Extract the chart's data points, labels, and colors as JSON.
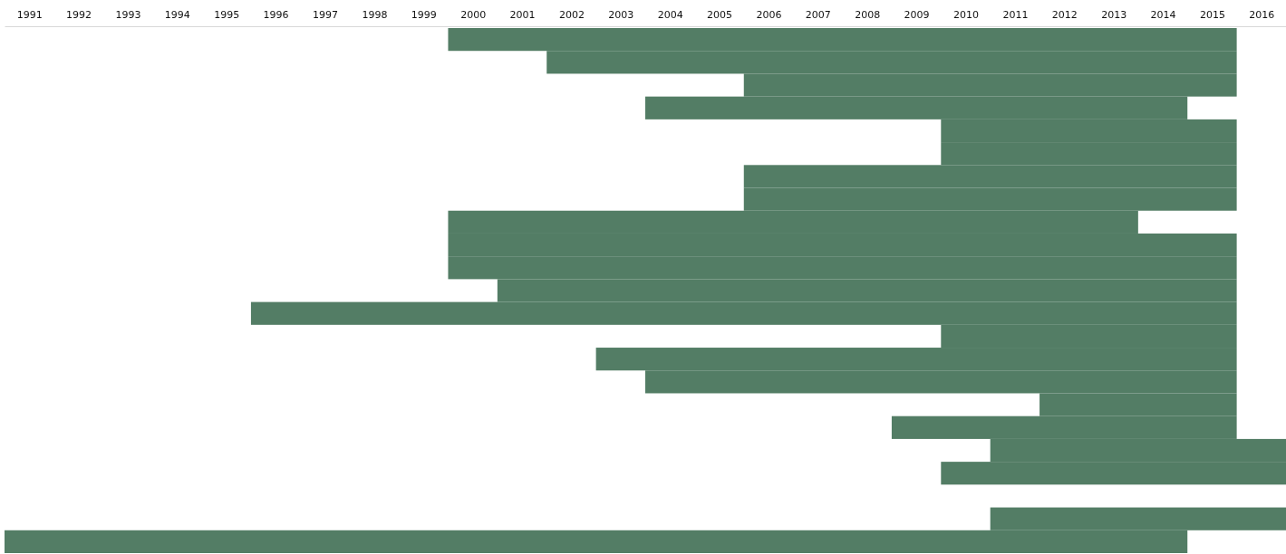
{
  "chart_data": [
    {
      "type": "bar",
      "orientation": "horizontal",
      "categories": [
        null,
        null,
        null,
        null,
        null,
        null,
        null,
        null,
        null,
        null,
        null,
        null,
        null,
        null,
        null,
        null,
        null,
        null,
        null,
        null
      ],
      "base": [
        1999.5,
        2001.5,
        2005.5,
        2003.5,
        2009.5,
        2009.5,
        2005.5,
        2005.5,
        1999.5,
        1999.5,
        1999.5,
        2000.5,
        1995.5,
        2009.5,
        2002.5,
        2003.5,
        2011.5,
        2008.5,
        2010.5,
        2009.5
      ],
      "values": [
        16,
        14,
        10,
        11,
        6,
        6,
        10,
        10,
        14,
        16,
        16,
        15,
        20,
        6,
        13,
        12,
        4,
        7,
        6,
        7
      ],
      "color": "#537d65",
      "xlim": [
        1990.5,
        2016.5
      ],
      "xticks": [
        1991,
        1992,
        1993,
        1994,
        1995,
        1996,
        1997,
        1998,
        1999,
        2000,
        2001,
        2002,
        2003,
        2004,
        2005,
        2006,
        2007,
        2008,
        2009,
        2010,
        2011,
        2012,
        2013,
        2014,
        2015,
        2016
      ],
      "tick_labels": "x",
      "grid": false
    },
    {
      "type": "bar",
      "orientation": "horizontal",
      "categories": [
        null,
        null
      ],
      "base": [
        2010.5,
        1990.5
      ],
      "values": [
        6,
        24
      ],
      "color": "#537d65",
      "xlim": [
        1990.5,
        2016.5
      ],
      "tick_labels": false,
      "grid": false
    }
  ]
}
